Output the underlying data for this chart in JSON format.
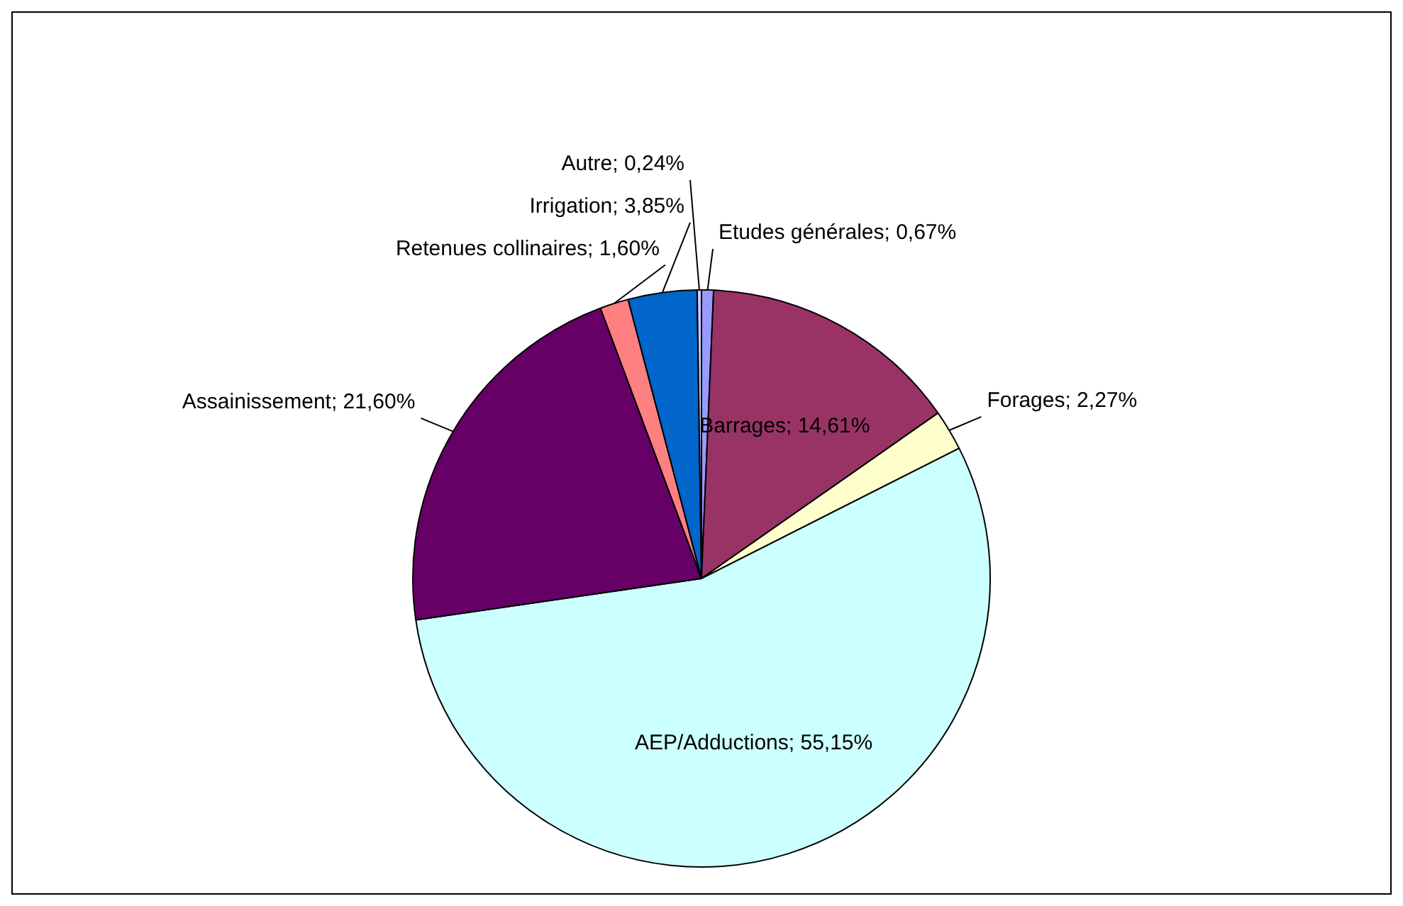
{
  "chart_data": {
    "type": "pie",
    "categories": [
      "Etudes générales",
      "Barrages",
      "Forages",
      "AEP/Adductions",
      "Assainissement",
      "Retenues collinaires",
      "Irrigation",
      "Autre"
    ],
    "values": [
      0.67,
      14.61,
      2.27,
      55.15,
      21.6,
      1.6,
      3.85,
      0.24
    ],
    "value_labels": [
      "0,67%",
      "14,61%",
      "2,27%",
      "55,15%",
      "21,60%",
      "1,60%",
      "3,85%",
      "0,24%"
    ],
    "colors": [
      "#9999ff",
      "#993366",
      "#ffffcc",
      "#ccffff",
      "#660066",
      "#ff8080",
      "#0066cc",
      "#ccccff"
    ],
    "legend": false
  }
}
